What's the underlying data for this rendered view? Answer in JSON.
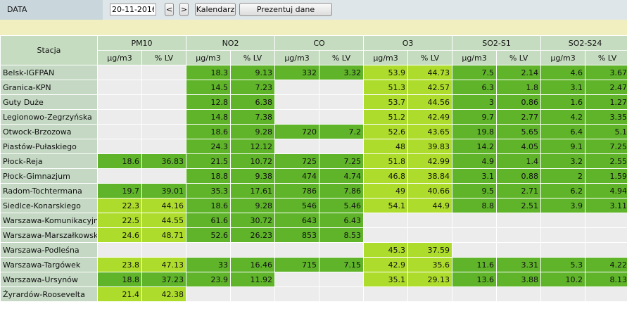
{
  "header": {
    "label": "DATA",
    "date_value": "20-11-2016",
    "prev_label": "<",
    "next_label": ">",
    "calendar_label": "Kalendarz",
    "present_label": "Prezentuj dane"
  },
  "table": {
    "station_header": "Stacja",
    "groups": [
      "PM10",
      "NO2",
      "CO",
      "O3",
      "SO2-S1",
      "SO2-S24"
    ],
    "unit_labels": [
      "µg/m3",
      "% LV"
    ],
    "level_colors": {
      "green": "#5fb42a",
      "light": "#aedc2c",
      "empty": "#ececec"
    },
    "rows": [
      {
        "station": "Belsk-IGFPAN",
        "cells": [
          {
            "v": "",
            "c": "e"
          },
          {
            "v": "",
            "c": "e"
          },
          {
            "v": "18.3",
            "c": "g"
          },
          {
            "v": "9.13",
            "c": "g"
          },
          {
            "v": "332",
            "c": "g"
          },
          {
            "v": "3.32",
            "c": "g"
          },
          {
            "v": "53.9",
            "c": "l"
          },
          {
            "v": "44.73",
            "c": "l"
          },
          {
            "v": "7.5",
            "c": "g"
          },
          {
            "v": "2.14",
            "c": "g"
          },
          {
            "v": "4.6",
            "c": "g"
          },
          {
            "v": "3.67",
            "c": "g"
          }
        ]
      },
      {
        "station": "Granica-KPN",
        "cells": [
          {
            "v": "",
            "c": "e"
          },
          {
            "v": "",
            "c": "e"
          },
          {
            "v": "14.5",
            "c": "g"
          },
          {
            "v": "7.23",
            "c": "g"
          },
          {
            "v": "",
            "c": "e"
          },
          {
            "v": "",
            "c": "e"
          },
          {
            "v": "51.3",
            "c": "l"
          },
          {
            "v": "42.57",
            "c": "l"
          },
          {
            "v": "6.3",
            "c": "g"
          },
          {
            "v": "1.8",
            "c": "g"
          },
          {
            "v": "3.1",
            "c": "g"
          },
          {
            "v": "2.47",
            "c": "g"
          }
        ]
      },
      {
        "station": "Guty Duże",
        "cells": [
          {
            "v": "",
            "c": "e"
          },
          {
            "v": "",
            "c": "e"
          },
          {
            "v": "12.8",
            "c": "g"
          },
          {
            "v": "6.38",
            "c": "g"
          },
          {
            "v": "",
            "c": "e"
          },
          {
            "v": "",
            "c": "e"
          },
          {
            "v": "53.7",
            "c": "l"
          },
          {
            "v": "44.56",
            "c": "l"
          },
          {
            "v": "3",
            "c": "g"
          },
          {
            "v": "0.86",
            "c": "g"
          },
          {
            "v": "1.6",
            "c": "g"
          },
          {
            "v": "1.27",
            "c": "g"
          }
        ]
      },
      {
        "station": "Legionowo-Zegrzyńska",
        "cells": [
          {
            "v": "",
            "c": "e"
          },
          {
            "v": "",
            "c": "e"
          },
          {
            "v": "14.8",
            "c": "g"
          },
          {
            "v": "7.38",
            "c": "g"
          },
          {
            "v": "",
            "c": "e"
          },
          {
            "v": "",
            "c": "e"
          },
          {
            "v": "51.2",
            "c": "l"
          },
          {
            "v": "42.49",
            "c": "l"
          },
          {
            "v": "9.7",
            "c": "g"
          },
          {
            "v": "2.77",
            "c": "g"
          },
          {
            "v": "4.2",
            "c": "g"
          },
          {
            "v": "3.35",
            "c": "g"
          }
        ]
      },
      {
        "station": "Otwock-Brzozowa",
        "cells": [
          {
            "v": "",
            "c": "e"
          },
          {
            "v": "",
            "c": "e"
          },
          {
            "v": "18.6",
            "c": "g"
          },
          {
            "v": "9.28",
            "c": "g"
          },
          {
            "v": "720",
            "c": "g"
          },
          {
            "v": "7.2",
            "c": "g"
          },
          {
            "v": "52.6",
            "c": "l"
          },
          {
            "v": "43.65",
            "c": "l"
          },
          {
            "v": "19.8",
            "c": "g"
          },
          {
            "v": "5.65",
            "c": "g"
          },
          {
            "v": "6.4",
            "c": "g"
          },
          {
            "v": "5.1",
            "c": "g"
          }
        ]
      },
      {
        "station": "Piastów-Pułaskiego",
        "cells": [
          {
            "v": "",
            "c": "e"
          },
          {
            "v": "",
            "c": "e"
          },
          {
            "v": "24.3",
            "c": "g"
          },
          {
            "v": "12.12",
            "c": "g"
          },
          {
            "v": "",
            "c": "e"
          },
          {
            "v": "",
            "c": "e"
          },
          {
            "v": "48",
            "c": "l"
          },
          {
            "v": "39.83",
            "c": "l"
          },
          {
            "v": "14.2",
            "c": "g"
          },
          {
            "v": "4.05",
            "c": "g"
          },
          {
            "v": "9.1",
            "c": "g"
          },
          {
            "v": "7.25",
            "c": "g"
          }
        ]
      },
      {
        "station": "Płock-Reja",
        "cells": [
          {
            "v": "18.6",
            "c": "g"
          },
          {
            "v": "36.83",
            "c": "g"
          },
          {
            "v": "21.5",
            "c": "g"
          },
          {
            "v": "10.72",
            "c": "g"
          },
          {
            "v": "725",
            "c": "g"
          },
          {
            "v": "7.25",
            "c": "g"
          },
          {
            "v": "51.8",
            "c": "l"
          },
          {
            "v": "42.99",
            "c": "l"
          },
          {
            "v": "4.9",
            "c": "g"
          },
          {
            "v": "1.4",
            "c": "g"
          },
          {
            "v": "3.2",
            "c": "g"
          },
          {
            "v": "2.55",
            "c": "g"
          }
        ]
      },
      {
        "station": "Płock-Gimnazjum",
        "cells": [
          {
            "v": "",
            "c": "e"
          },
          {
            "v": "",
            "c": "e"
          },
          {
            "v": "18.8",
            "c": "g"
          },
          {
            "v": "9.38",
            "c": "g"
          },
          {
            "v": "474",
            "c": "g"
          },
          {
            "v": "4.74",
            "c": "g"
          },
          {
            "v": "46.8",
            "c": "l"
          },
          {
            "v": "38.84",
            "c": "l"
          },
          {
            "v": "3.1",
            "c": "g"
          },
          {
            "v": "0.88",
            "c": "g"
          },
          {
            "v": "2",
            "c": "g"
          },
          {
            "v": "1.59",
            "c": "g"
          }
        ]
      },
      {
        "station": "Radom-Tochtermana",
        "cells": [
          {
            "v": "19.7",
            "c": "g"
          },
          {
            "v": "39.01",
            "c": "g"
          },
          {
            "v": "35.3",
            "c": "g"
          },
          {
            "v": "17.61",
            "c": "g"
          },
          {
            "v": "786",
            "c": "g"
          },
          {
            "v": "7.86",
            "c": "g"
          },
          {
            "v": "49",
            "c": "l"
          },
          {
            "v": "40.66",
            "c": "l"
          },
          {
            "v": "9.5",
            "c": "g"
          },
          {
            "v": "2.71",
            "c": "g"
          },
          {
            "v": "6.2",
            "c": "g"
          },
          {
            "v": "4.94",
            "c": "g"
          }
        ]
      },
      {
        "station": "Siedlce-Konarskiego",
        "cells": [
          {
            "v": "22.3",
            "c": "l"
          },
          {
            "v": "44.16",
            "c": "l"
          },
          {
            "v": "18.6",
            "c": "g"
          },
          {
            "v": "9.28",
            "c": "g"
          },
          {
            "v": "546",
            "c": "g"
          },
          {
            "v": "5.46",
            "c": "g"
          },
          {
            "v": "54.1",
            "c": "l"
          },
          {
            "v": "44.9",
            "c": "l"
          },
          {
            "v": "8.8",
            "c": "g"
          },
          {
            "v": "2.51",
            "c": "g"
          },
          {
            "v": "3.9",
            "c": "g"
          },
          {
            "v": "3.11",
            "c": "g"
          }
        ]
      },
      {
        "station": "Warszawa-Komunikacyjna",
        "cells": [
          {
            "v": "22.5",
            "c": "l"
          },
          {
            "v": "44.55",
            "c": "l"
          },
          {
            "v": "61.6",
            "c": "g"
          },
          {
            "v": "30.72",
            "c": "g"
          },
          {
            "v": "643",
            "c": "g"
          },
          {
            "v": "6.43",
            "c": "g"
          },
          {
            "v": "",
            "c": "e"
          },
          {
            "v": "",
            "c": "e"
          },
          {
            "v": "",
            "c": "e"
          },
          {
            "v": "",
            "c": "e"
          },
          {
            "v": "",
            "c": "e"
          },
          {
            "v": "",
            "c": "e"
          }
        ]
      },
      {
        "station": "Warszawa-Marszałkowska",
        "cells": [
          {
            "v": "24.6",
            "c": "l"
          },
          {
            "v": "48.71",
            "c": "l"
          },
          {
            "v": "52.6",
            "c": "g"
          },
          {
            "v": "26.23",
            "c": "g"
          },
          {
            "v": "853",
            "c": "g"
          },
          {
            "v": "8.53",
            "c": "g"
          },
          {
            "v": "",
            "c": "e"
          },
          {
            "v": "",
            "c": "e"
          },
          {
            "v": "",
            "c": "e"
          },
          {
            "v": "",
            "c": "e"
          },
          {
            "v": "",
            "c": "e"
          },
          {
            "v": "",
            "c": "e"
          }
        ]
      },
      {
        "station": "Warszawa-Podleśna",
        "cells": [
          {
            "v": "",
            "c": "e"
          },
          {
            "v": "",
            "c": "e"
          },
          {
            "v": "",
            "c": "e"
          },
          {
            "v": "",
            "c": "e"
          },
          {
            "v": "",
            "c": "e"
          },
          {
            "v": "",
            "c": "e"
          },
          {
            "v": "45.3",
            "c": "l"
          },
          {
            "v": "37.59",
            "c": "l"
          },
          {
            "v": "",
            "c": "e"
          },
          {
            "v": "",
            "c": "e"
          },
          {
            "v": "",
            "c": "e"
          },
          {
            "v": "",
            "c": "e"
          }
        ]
      },
      {
        "station": "Warszawa-Targówek",
        "cells": [
          {
            "v": "23.8",
            "c": "l"
          },
          {
            "v": "47.13",
            "c": "l"
          },
          {
            "v": "33",
            "c": "g"
          },
          {
            "v": "16.46",
            "c": "g"
          },
          {
            "v": "715",
            "c": "g"
          },
          {
            "v": "7.15",
            "c": "g"
          },
          {
            "v": "42.9",
            "c": "l"
          },
          {
            "v": "35.6",
            "c": "l"
          },
          {
            "v": "11.6",
            "c": "g"
          },
          {
            "v": "3.31",
            "c": "g"
          },
          {
            "v": "5.3",
            "c": "g"
          },
          {
            "v": "4.22",
            "c": "g"
          }
        ]
      },
      {
        "station": "Warszawa-Ursynów",
        "cells": [
          {
            "v": "18.8",
            "c": "g"
          },
          {
            "v": "37.23",
            "c": "g"
          },
          {
            "v": "23.9",
            "c": "g"
          },
          {
            "v": "11.92",
            "c": "g"
          },
          {
            "v": "",
            "c": "e"
          },
          {
            "v": "",
            "c": "e"
          },
          {
            "v": "35.1",
            "c": "l"
          },
          {
            "v": "29.13",
            "c": "l"
          },
          {
            "v": "13.6",
            "c": "g"
          },
          {
            "v": "3.88",
            "c": "g"
          },
          {
            "v": "10.2",
            "c": "g"
          },
          {
            "v": "8.13",
            "c": "g"
          }
        ]
      },
      {
        "station": "Żyrardów-Roosevelta",
        "cells": [
          {
            "v": "21.4",
            "c": "l"
          },
          {
            "v": "42.38",
            "c": "l"
          },
          {
            "v": "",
            "c": "e"
          },
          {
            "v": "",
            "c": "e"
          },
          {
            "v": "",
            "c": "e"
          },
          {
            "v": "",
            "c": "e"
          },
          {
            "v": "",
            "c": "e"
          },
          {
            "v": "",
            "c": "e"
          },
          {
            "v": "",
            "c": "e"
          },
          {
            "v": "",
            "c": "e"
          },
          {
            "v": "",
            "c": "e"
          },
          {
            "v": "",
            "c": "e"
          }
        ]
      }
    ]
  }
}
